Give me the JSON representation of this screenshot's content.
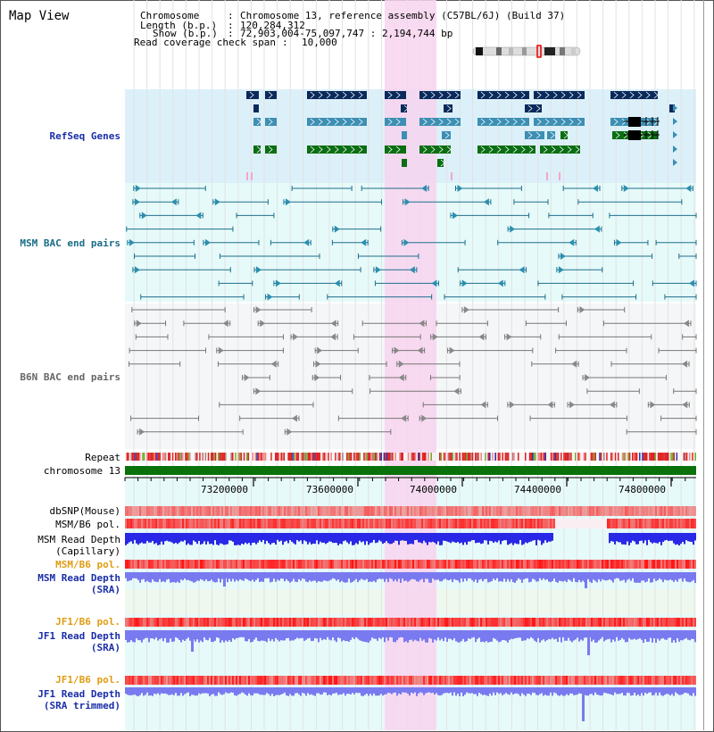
{
  "header": {
    "title": "Map View",
    "chromosome_label": "Chromosome",
    "chromosome_value": "Chromosome 13, reference assembly (C57BL/6J) (Build 37)",
    "length_label": "Length (b.p.)",
    "length_value": "120,284,312",
    "show_label": "Show (b.p.)",
    "show_value": "72,903,004-75,097,747 : 2,194,744 bp",
    "coverage_label": "Read coverage check span",
    "coverage_value": "10,000",
    "separator": ":"
  },
  "tracks": {
    "refseq": "RefSeq Genes",
    "msm_bac": "MSM BAC end pairs",
    "b6n_bac": "B6N BAC end pairs",
    "repeat": "Repeat",
    "chromosome": "chromosome 13",
    "dbsnp": "dbSNP(Mouse)",
    "msm_b6_pol_1": "MSM/B6 pol.",
    "msm_depth_cap_1": "MSM Read Depth",
    "msm_depth_cap_2": "(Capillary)",
    "msm_b6_pol_2": "MSM/B6 pol.",
    "msm_depth_sra_1": "MSM Read Depth",
    "msm_depth_sra_2": "(SRA)",
    "jf1_b6_pol_1": "JF1/B6 pol.",
    "jf1_depth_1": "JF1 Read Depth",
    "jf1_depth_2": "(SRA)",
    "jf1_b6_pol_2": "JF1/B6 pol.",
    "jf1_trim_1": "JF1 Read Depth",
    "jf1_trim_2": "(SRA trimmed)"
  },
  "axis": {
    "ticks": [
      "73200000",
      "73600000",
      "74000000",
      "74400000",
      "74800000"
    ]
  },
  "colors": {
    "refseq_bg": "#dcf0fa",
    "msm_bg": "#e6fafa",
    "highlight": "#f7d4ef",
    "gene_dark": "#0a2a5c",
    "gene_mid": "#3d8fb3",
    "gene_green": "#0a6e12",
    "chromosome_bar": "#0a720a",
    "depth_capillary": "#2828e6",
    "depth_sra": "#7a7af0"
  }
}
